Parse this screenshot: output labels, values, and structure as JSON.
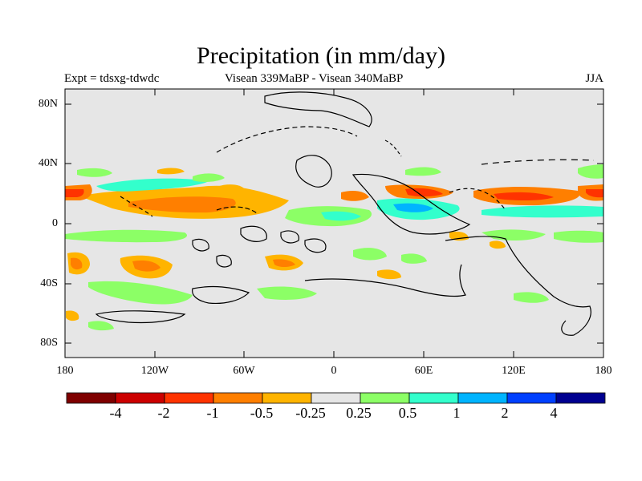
{
  "title": "Precipitation (in mm/day)",
  "subtitle_left": "Expt = tdsxg-tdwdc",
  "subtitle_center": "Visean 339MaBP - Visean   340MaBP",
  "subtitle_right": "JJA",
  "lat_ticks": [
    "80N",
    "40N",
    "0",
    "40S",
    "80S"
  ],
  "lon_ticks": [
    "180",
    "120W",
    "60W",
    "0",
    "60E",
    "120E",
    "180"
  ],
  "colorbar": {
    "colors": [
      "#7f0000",
      "#cc0000",
      "#ff3300",
      "#ff7f00",
      "#ffb400",
      "#e6e6e6",
      "#8cff66",
      "#33ffcc",
      "#00b4ff",
      "#0040ff",
      "#000090"
    ],
    "labels": [
      "-4",
      "-2",
      "-1",
      "-0.5",
      "-0.25",
      "0.25",
      "0.5",
      "1",
      "2",
      "4"
    ]
  },
  "background_color": "#e6e6e6"
}
